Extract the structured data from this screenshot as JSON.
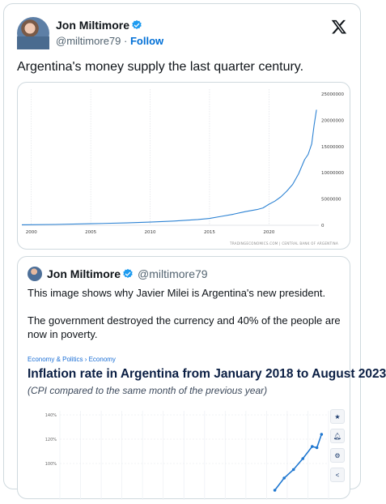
{
  "tweet": {
    "author_name": "Jon Miltimore",
    "author_handle": "@miltimore79",
    "separator": "·",
    "follow_label": "Follow",
    "text": "Argentina's money supply the last quarter century."
  },
  "chart_data": [
    {
      "type": "line",
      "x_ticks": [
        "2000",
        "2005",
        "2010",
        "2015",
        "2020"
      ],
      "y_ticks": [
        "25000000",
        "20000000",
        "15000000",
        "10000000",
        "5000000",
        "0"
      ],
      "ylim": [
        0,
        25000000
      ],
      "source_note": "TRADINGECONOMICS.COM | CENTRAL BANK OF ARGENTINA",
      "series": [
        {
          "x": [
            1999.2,
            2002,
            2005,
            2008,
            2010,
            2012,
            2014,
            2015,
            2016,
            2017,
            2018,
            2019,
            2019.5,
            2020,
            2020.5,
            2021,
            2021.5,
            2022,
            2022.5,
            2023,
            2023.3,
            2023.6,
            2023.8,
            2024
          ],
          "values": [
            100000,
            150000,
            300000,
            450000,
            600000,
            800000,
            1100000,
            1300000,
            1700000,
            2100000,
            2600000,
            3000000,
            3300000,
            4000000,
            4600000,
            5400000,
            6500000,
            7800000,
            9800000,
            12500000,
            13500000,
            15500000,
            19000000,
            22000000
          ]
        }
      ],
      "colors": {
        "line": "#2c82d3"
      }
    },
    {
      "type": "line",
      "title": "Inflation rate in Argentina from January 2018 to August 2023",
      "subtitle": "(CPI compared to the same month of the previous year)",
      "y_ticks": [
        "140%",
        "120%",
        "100%"
      ],
      "series": [
        {
          "x": [
            2022.6,
            2022.8,
            2023.0,
            2023.2,
            2023.4,
            2023.5,
            2023.6
          ],
          "values": [
            78,
            88,
            95,
            104,
            114,
            113,
            124
          ]
        }
      ],
      "colors": {
        "line": "#1f77d0"
      }
    }
  ],
  "quote": {
    "author_name": "Jon Miltimore",
    "author_handle": "@miltimore79",
    "paragraphs": [
      "This image shows why Javier Milei is Argentina's new president.",
      "The government destroyed the currency and 40% of the people are now in poverty."
    ],
    "breadcrumb": "Economy & Politics › Economy"
  },
  "tools": [
    "star-icon",
    "bell-icon",
    "gear-icon",
    "share-icon"
  ],
  "colors": {
    "verified": "#1d9bf0",
    "link": "#006fd6"
  }
}
